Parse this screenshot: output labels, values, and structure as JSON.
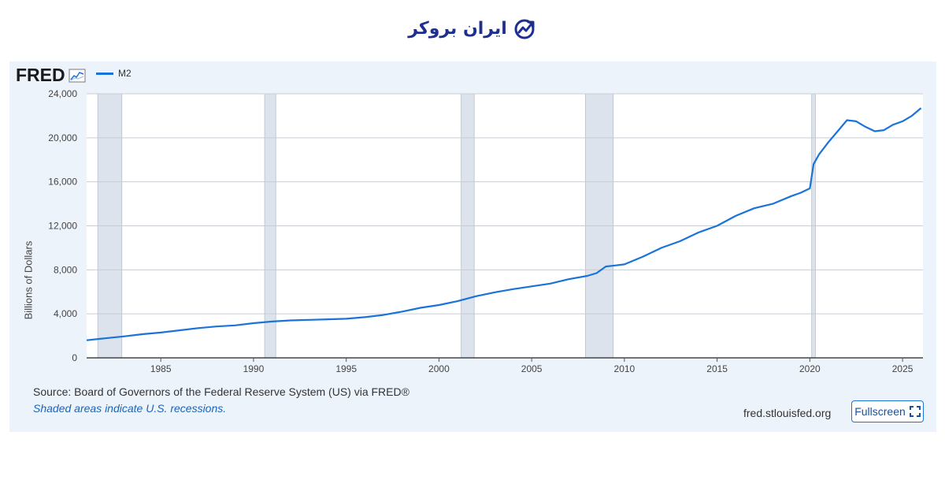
{
  "brand": {
    "name": "ایران بروکر",
    "color": "#1f2f8f"
  },
  "header": {
    "logo_text": "FRED",
    "legend_label": "M2"
  },
  "footer": {
    "source": "Source: Board of Governors of the Federal Reserve System (US) via FRED®",
    "note": "Shaded areas indicate U.S. recessions.",
    "site": "fred.stlouisfed.org",
    "fullscreen_label": "Fullscreen"
  },
  "colors": {
    "line": "#1a73d9",
    "recession": "#dde3ec",
    "grid": "#c8ccd2",
    "panel": "#edf3fb"
  },
  "chart_data": {
    "type": "line",
    "title": "",
    "xlabel": "",
    "ylabel": "Billions of Dollars",
    "xlim": [
      1981.0,
      2026.1
    ],
    "ylim": [
      0,
      24000
    ],
    "yticks": [
      0,
      4000,
      8000,
      12000,
      16000,
      20000,
      24000
    ],
    "ytick_labels": [
      "0",
      "4,000",
      "8,000",
      "12,000",
      "16,000",
      "20,000",
      "24,000"
    ],
    "xticks": [
      1985,
      1990,
      1995,
      2000,
      2005,
      2010,
      2015,
      2020,
      2025
    ],
    "xtick_labels": [
      "1985",
      "1990",
      "1995",
      "2000",
      "2005",
      "2010",
      "2015",
      "2020",
      "2025"
    ],
    "recessions": [
      [
        1981.6,
        1982.9
      ],
      [
        1990.6,
        1991.2
      ],
      [
        2001.2,
        2001.9
      ],
      [
        2007.9,
        2009.4
      ],
      [
        2020.1,
        2020.3
      ]
    ],
    "series": [
      {
        "name": "M2",
        "x": [
          1981.0,
          1982.0,
          1983.0,
          1984.0,
          1985.0,
          1986.0,
          1987.0,
          1988.0,
          1989.0,
          1990.0,
          1991.0,
          1992.0,
          1993.0,
          1994.0,
          1995.0,
          1996.0,
          1997.0,
          1998.0,
          1999.0,
          2000.0,
          2001.0,
          2002.0,
          2003.0,
          2004.0,
          2005.0,
          2006.0,
          2007.0,
          2008.0,
          2008.5,
          2009.0,
          2009.5,
          2010.0,
          2011.0,
          2012.0,
          2013.0,
          2014.0,
          2015.0,
          2016.0,
          2017.0,
          2018.0,
          2019.0,
          2019.5,
          2020.0,
          2020.2,
          2020.5,
          2021.0,
          2021.5,
          2022.0,
          2022.5,
          2023.0,
          2023.5,
          2024.0,
          2024.5,
          2025.0,
          2025.5,
          2026.0
        ],
        "values": [
          1600,
          1780,
          1950,
          2150,
          2300,
          2500,
          2700,
          2850,
          2950,
          3150,
          3300,
          3400,
          3450,
          3500,
          3550,
          3700,
          3900,
          4200,
          4550,
          4800,
          5150,
          5600,
          5950,
          6250,
          6500,
          6750,
          7150,
          7450,
          7700,
          8300,
          8400,
          8500,
          9200,
          10000,
          10600,
          11400,
          12000,
          12900,
          13600,
          14000,
          14700,
          15000,
          15400,
          17600,
          18500,
          19600,
          20600,
          21600,
          21500,
          21000,
          20600,
          20700,
          21200,
          21500,
          22000,
          22700
        ]
      }
    ]
  }
}
